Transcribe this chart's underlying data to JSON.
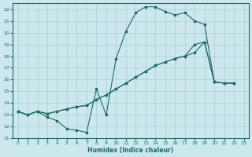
{
  "xlabel": "Humidex (Indice chaleur)",
  "bg_color": "#cce8ec",
  "grid_color": "#aacdd4",
  "line_color": "#1a6b6b",
  "xlim": [
    -0.5,
    23.5
  ],
  "ylim": [
    11,
    22.5
  ],
  "xticks": [
    0,
    1,
    2,
    3,
    4,
    5,
    6,
    7,
    8,
    9,
    10,
    11,
    12,
    13,
    14,
    15,
    16,
    17,
    18,
    19,
    20,
    21,
    22,
    23
  ],
  "yticks": [
    11,
    12,
    13,
    14,
    15,
    16,
    17,
    18,
    19,
    20,
    21,
    22
  ],
  "series1_x": [
    0,
    1,
    2,
    3,
    4,
    5,
    6,
    7,
    8,
    9,
    10,
    11,
    12,
    13,
    14,
    15,
    16,
    17,
    18,
    19,
    20,
    21,
    22
  ],
  "series1_y": [
    13.3,
    13.0,
    13.3,
    12.8,
    12.5,
    11.8,
    11.7,
    11.5,
    15.2,
    13.0,
    17.8,
    20.1,
    21.7,
    22.2,
    22.2,
    21.8,
    21.5,
    21.7,
    21.0,
    20.7,
    15.8,
    15.7,
    15.7
  ],
  "series2_x": [
    0,
    1,
    2,
    3,
    4,
    5,
    6,
    7,
    8,
    9,
    10,
    11,
    12,
    13,
    14,
    15,
    16,
    17,
    18,
    19,
    20,
    21,
    22
  ],
  "series2_y": [
    13.3,
    13.0,
    13.3,
    13.1,
    13.3,
    13.5,
    13.7,
    13.8,
    14.3,
    14.7,
    15.2,
    15.7,
    16.2,
    16.7,
    17.2,
    17.5,
    17.8,
    18.0,
    18.3,
    19.2,
    15.8,
    15.7,
    15.7
  ],
  "series3_x": [
    0,
    1,
    2,
    3,
    4,
    5,
    6,
    7,
    8,
    9,
    10,
    11,
    12,
    13,
    14,
    15,
    16,
    17,
    18,
    19,
    20,
    21,
    22
  ],
  "series3_y": [
    13.3,
    13.0,
    13.3,
    13.1,
    13.3,
    13.5,
    13.7,
    13.8,
    14.3,
    14.7,
    15.2,
    15.7,
    16.2,
    16.7,
    17.2,
    17.5,
    17.8,
    18.0,
    19.0,
    19.2,
    15.8,
    15.7,
    15.7
  ]
}
